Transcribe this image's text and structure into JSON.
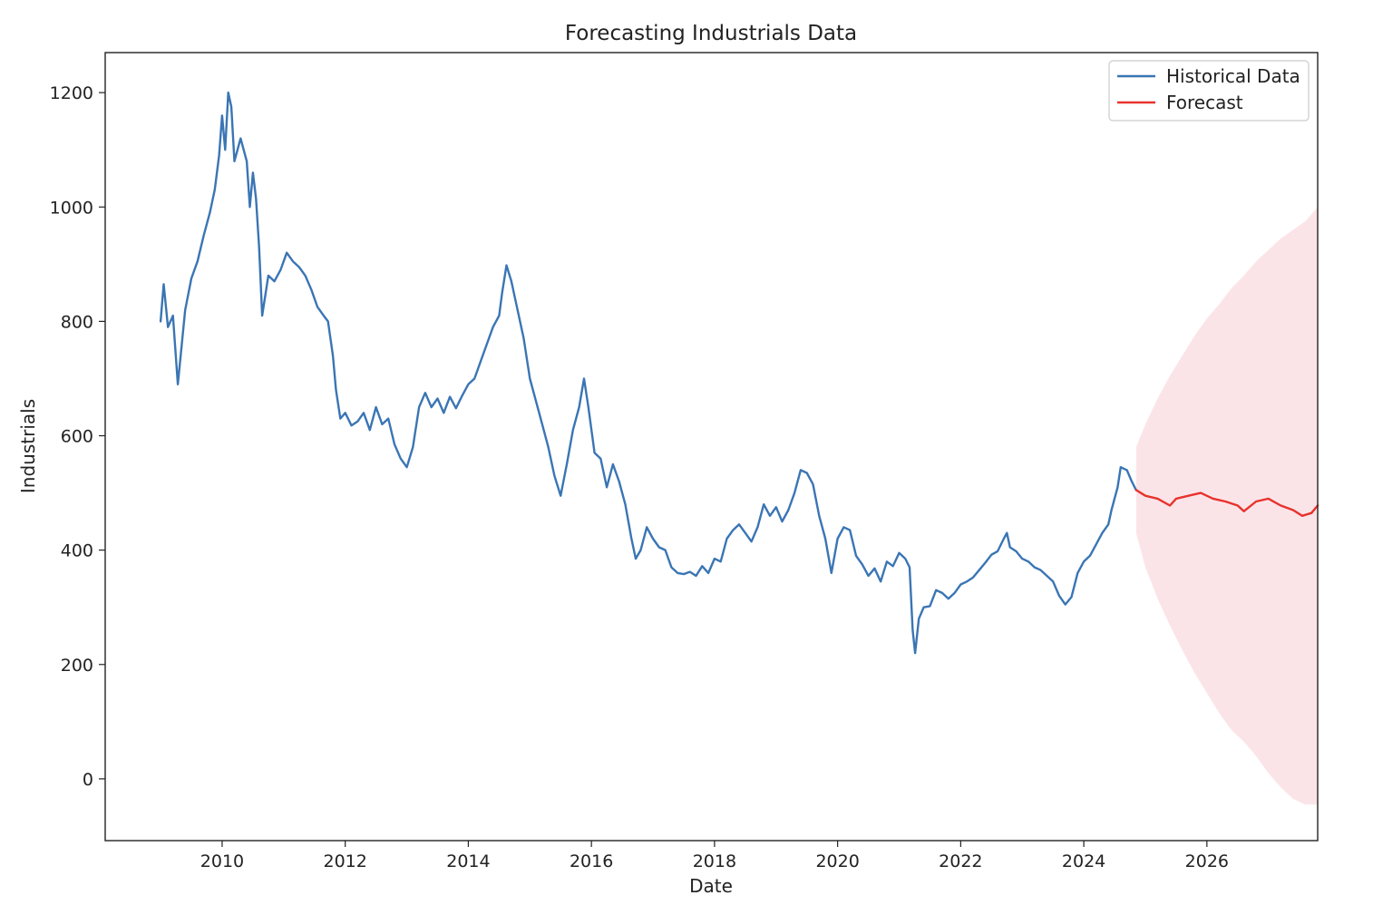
{
  "chart_data": {
    "type": "line",
    "title": "Forecasting Industrials Data",
    "xlabel": "Date",
    "ylabel": "Industrials",
    "xlim": [
      2008.1,
      2027.8
    ],
    "ylim": [
      -108,
      1270
    ],
    "grid": false,
    "legend_position": "top-right",
    "x_ticks": [
      2010,
      2012,
      2014,
      2016,
      2018,
      2020,
      2022,
      2024,
      2026
    ],
    "x_tick_labels": [
      "2010",
      "2012",
      "2014",
      "2016",
      "2018",
      "2020",
      "2022",
      "2024",
      "2026"
    ],
    "y_ticks": [
      0,
      200,
      400,
      600,
      800,
      1000,
      1200
    ],
    "y_tick_labels": [
      "0",
      "200",
      "400",
      "600",
      "800",
      "1000",
      "1200"
    ],
    "series": [
      {
        "name": "Historical Data",
        "color": "#3a75b4",
        "points": [
          [
            2009.0,
            800
          ],
          [
            2009.05,
            865
          ],
          [
            2009.12,
            790
          ],
          [
            2009.2,
            810
          ],
          [
            2009.28,
            690
          ],
          [
            2009.4,
            820
          ],
          [
            2009.5,
            875
          ],
          [
            2009.6,
            905
          ],
          [
            2009.7,
            950
          ],
          [
            2009.8,
            990
          ],
          [
            2009.88,
            1030
          ],
          [
            2009.95,
            1090
          ],
          [
            2010.0,
            1160
          ],
          [
            2010.05,
            1100
          ],
          [
            2010.1,
            1200
          ],
          [
            2010.15,
            1175
          ],
          [
            2010.2,
            1080
          ],
          [
            2010.3,
            1120
          ],
          [
            2010.4,
            1080
          ],
          [
            2010.45,
            1000
          ],
          [
            2010.5,
            1060
          ],
          [
            2010.55,
            1015
          ],
          [
            2010.6,
            930
          ],
          [
            2010.65,
            810
          ],
          [
            2010.75,
            880
          ],
          [
            2010.85,
            870
          ],
          [
            2010.95,
            890
          ],
          [
            2011.05,
            920
          ],
          [
            2011.15,
            905
          ],
          [
            2011.25,
            895
          ],
          [
            2011.35,
            880
          ],
          [
            2011.45,
            855
          ],
          [
            2011.55,
            825
          ],
          [
            2011.65,
            810
          ],
          [
            2011.72,
            800
          ],
          [
            2011.8,
            740
          ],
          [
            2011.85,
            680
          ],
          [
            2011.92,
            630
          ],
          [
            2012.0,
            640
          ],
          [
            2012.1,
            618
          ],
          [
            2012.2,
            625
          ],
          [
            2012.3,
            640
          ],
          [
            2012.4,
            610
          ],
          [
            2012.5,
            650
          ],
          [
            2012.6,
            620
          ],
          [
            2012.7,
            630
          ],
          [
            2012.8,
            585
          ],
          [
            2012.9,
            560
          ],
          [
            2013.0,
            545
          ],
          [
            2013.1,
            580
          ],
          [
            2013.2,
            650
          ],
          [
            2013.3,
            675
          ],
          [
            2013.4,
            650
          ],
          [
            2013.5,
            665
          ],
          [
            2013.6,
            640
          ],
          [
            2013.7,
            668
          ],
          [
            2013.8,
            648
          ],
          [
            2013.9,
            670
          ],
          [
            2014.0,
            690
          ],
          [
            2014.1,
            700
          ],
          [
            2014.2,
            730
          ],
          [
            2014.3,
            760
          ],
          [
            2014.4,
            790
          ],
          [
            2014.5,
            810
          ],
          [
            2014.55,
            850
          ],
          [
            2014.62,
            898
          ],
          [
            2014.7,
            870
          ],
          [
            2014.8,
            820
          ],
          [
            2014.9,
            770
          ],
          [
            2015.0,
            700
          ],
          [
            2015.1,
            660
          ],
          [
            2015.2,
            620
          ],
          [
            2015.3,
            580
          ],
          [
            2015.4,
            530
          ],
          [
            2015.5,
            495
          ],
          [
            2015.6,
            550
          ],
          [
            2015.7,
            610
          ],
          [
            2015.8,
            650
          ],
          [
            2015.88,
            700
          ],
          [
            2015.95,
            650
          ],
          [
            2016.05,
            570
          ],
          [
            2016.15,
            560
          ],
          [
            2016.25,
            510
          ],
          [
            2016.35,
            550
          ],
          [
            2016.45,
            520
          ],
          [
            2016.55,
            480
          ],
          [
            2016.65,
            420
          ],
          [
            2016.72,
            385
          ],
          [
            2016.8,
            400
          ],
          [
            2016.9,
            440
          ],
          [
            2017.0,
            420
          ],
          [
            2017.1,
            405
          ],
          [
            2017.2,
            400
          ],
          [
            2017.3,
            370
          ],
          [
            2017.4,
            360
          ],
          [
            2017.5,
            358
          ],
          [
            2017.6,
            362
          ],
          [
            2017.7,
            355
          ],
          [
            2017.8,
            372
          ],
          [
            2017.9,
            360
          ],
          [
            2018.0,
            385
          ],
          [
            2018.1,
            380
          ],
          [
            2018.2,
            420
          ],
          [
            2018.3,
            435
          ],
          [
            2018.4,
            445
          ],
          [
            2018.5,
            430
          ],
          [
            2018.6,
            415
          ],
          [
            2018.7,
            440
          ],
          [
            2018.8,
            480
          ],
          [
            2018.9,
            460
          ],
          [
            2019.0,
            475
          ],
          [
            2019.1,
            450
          ],
          [
            2019.2,
            470
          ],
          [
            2019.3,
            500
          ],
          [
            2019.4,
            540
          ],
          [
            2019.5,
            535
          ],
          [
            2019.6,
            515
          ],
          [
            2019.7,
            460
          ],
          [
            2019.8,
            420
          ],
          [
            2019.9,
            360
          ],
          [
            2020.0,
            420
          ],
          [
            2020.1,
            440
          ],
          [
            2020.2,
            435
          ],
          [
            2020.3,
            390
          ],
          [
            2020.4,
            375
          ],
          [
            2020.5,
            355
          ],
          [
            2020.6,
            368
          ],
          [
            2020.7,
            345
          ],
          [
            2020.8,
            380
          ],
          [
            2020.9,
            372
          ],
          [
            2021.0,
            395
          ],
          [
            2021.1,
            385
          ],
          [
            2021.17,
            370
          ],
          [
            2021.22,
            260
          ],
          [
            2021.26,
            220
          ],
          [
            2021.32,
            280
          ],
          [
            2021.4,
            300
          ],
          [
            2021.5,
            302
          ],
          [
            2021.6,
            330
          ],
          [
            2021.7,
            325
          ],
          [
            2021.8,
            315
          ],
          [
            2021.9,
            325
          ],
          [
            2022.0,
            340
          ],
          [
            2022.1,
            345
          ],
          [
            2022.2,
            352
          ],
          [
            2022.3,
            365
          ],
          [
            2022.4,
            378
          ],
          [
            2022.5,
            392
          ],
          [
            2022.6,
            398
          ],
          [
            2022.7,
            420
          ],
          [
            2022.75,
            430
          ],
          [
            2022.8,
            405
          ],
          [
            2022.9,
            398
          ],
          [
            2023.0,
            385
          ],
          [
            2023.1,
            380
          ],
          [
            2023.2,
            370
          ],
          [
            2023.3,
            365
          ],
          [
            2023.4,
            355
          ],
          [
            2023.5,
            345
          ],
          [
            2023.6,
            320
          ],
          [
            2023.7,
            305
          ],
          [
            2023.8,
            318
          ],
          [
            2023.9,
            360
          ],
          [
            2024.0,
            380
          ],
          [
            2024.1,
            390
          ],
          [
            2024.2,
            410
          ],
          [
            2024.3,
            430
          ],
          [
            2024.4,
            445
          ],
          [
            2024.45,
            470
          ],
          [
            2024.55,
            510
          ],
          [
            2024.6,
            545
          ],
          [
            2024.7,
            540
          ],
          [
            2024.78,
            520
          ],
          [
            2024.85,
            505
          ]
        ]
      },
      {
        "name": "Forecast",
        "color": "#e8322c",
        "points": [
          [
            2024.85,
            505
          ],
          [
            2025.0,
            495
          ],
          [
            2025.2,
            490
          ],
          [
            2025.4,
            478
          ],
          [
            2025.5,
            490
          ],
          [
            2025.7,
            495
          ],
          [
            2025.9,
            500
          ],
          [
            2026.1,
            490
          ],
          [
            2026.3,
            485
          ],
          [
            2026.5,
            478
          ],
          [
            2026.6,
            468
          ],
          [
            2026.8,
            485
          ],
          [
            2027.0,
            490
          ],
          [
            2027.2,
            478
          ],
          [
            2027.4,
            470
          ],
          [
            2027.55,
            460
          ],
          [
            2027.7,
            465
          ],
          [
            2027.8,
            478
          ]
        ]
      }
    ],
    "confidence_band": {
      "color": "#fbe4e8",
      "upper": [
        [
          2024.85,
          580
        ],
        [
          2025.0,
          620
        ],
        [
          2025.2,
          665
        ],
        [
          2025.4,
          705
        ],
        [
          2025.6,
          740
        ],
        [
          2025.8,
          775
        ],
        [
          2026.0,
          805
        ],
        [
          2026.2,
          830
        ],
        [
          2026.4,
          858
        ],
        [
          2026.6,
          880
        ],
        [
          2026.8,
          905
        ],
        [
          2027.0,
          925
        ],
        [
          2027.2,
          945
        ],
        [
          2027.4,
          960
        ],
        [
          2027.6,
          975
        ],
        [
          2027.8,
          1000
        ]
      ],
      "lower": [
        [
          2024.85,
          430
        ],
        [
          2025.0,
          370
        ],
        [
          2025.2,
          315
        ],
        [
          2025.4,
          268
        ],
        [
          2025.6,
          225
        ],
        [
          2025.8,
          185
        ],
        [
          2026.0,
          150
        ],
        [
          2026.2,
          115
        ],
        [
          2026.4,
          85
        ],
        [
          2026.6,
          65
        ],
        [
          2026.8,
          40
        ],
        [
          2027.0,
          10
        ],
        [
          2027.2,
          -15
        ],
        [
          2027.4,
          -35
        ],
        [
          2027.6,
          -45
        ],
        [
          2027.8,
          -45
        ]
      ]
    }
  }
}
